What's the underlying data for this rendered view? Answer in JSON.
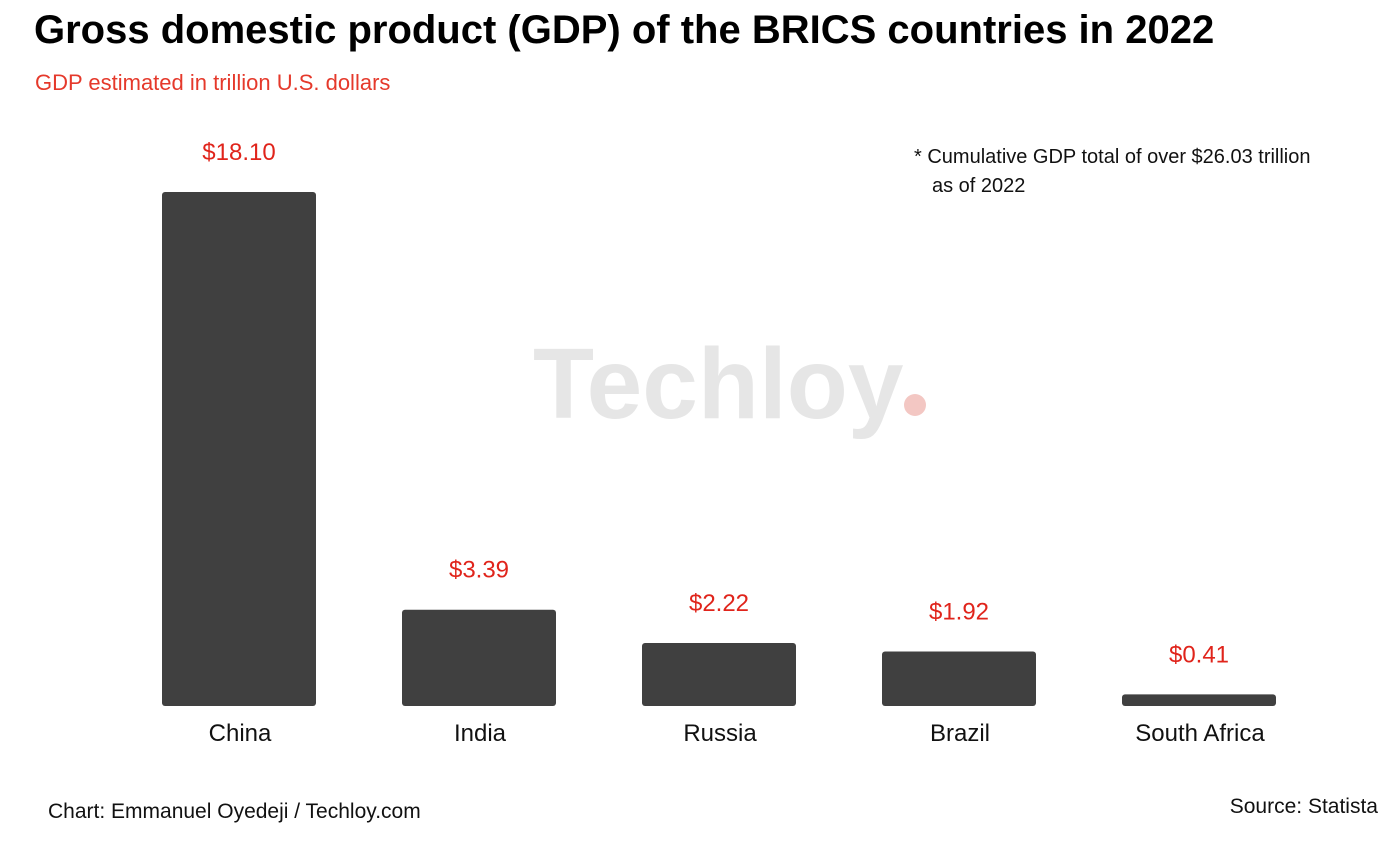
{
  "header": {
    "title": "Gross domestic product (GDP) of the BRICS countries in 2022",
    "subtitle": "GDP estimated in trillion U.S. dollars"
  },
  "note": {
    "line1": "* Cumulative GDP total of over $26.03 trillion",
    "line2": "as of 2022"
  },
  "watermark": {
    "text": "Techloy",
    "dot_color": "#f3c7c3"
  },
  "footer": {
    "credit": "Chart: Emmanuel Oyedeji / Techloy.com",
    "source": "Source: Statista"
  },
  "colors": {
    "bar": "#404040",
    "value_label": "#e0241b",
    "subtitle": "#e5392b"
  },
  "chart_data": {
    "type": "bar",
    "categories": [
      "China",
      "India",
      "Russia",
      "Brazil",
      "South Africa"
    ],
    "values": [
      18.1,
      3.39,
      2.22,
      1.92,
      0.41
    ],
    "value_labels": [
      "$18.10",
      "$3.39",
      "$2.22",
      "$1.92",
      "$0.41"
    ],
    "title": "Gross domestic product (GDP) of the BRICS countries in 2022",
    "subtitle": "GDP estimated in trillion U.S. dollars",
    "xlabel": "",
    "ylabel": "",
    "ylim": [
      0,
      18.1
    ],
    "grid": false,
    "legend": "none"
  }
}
